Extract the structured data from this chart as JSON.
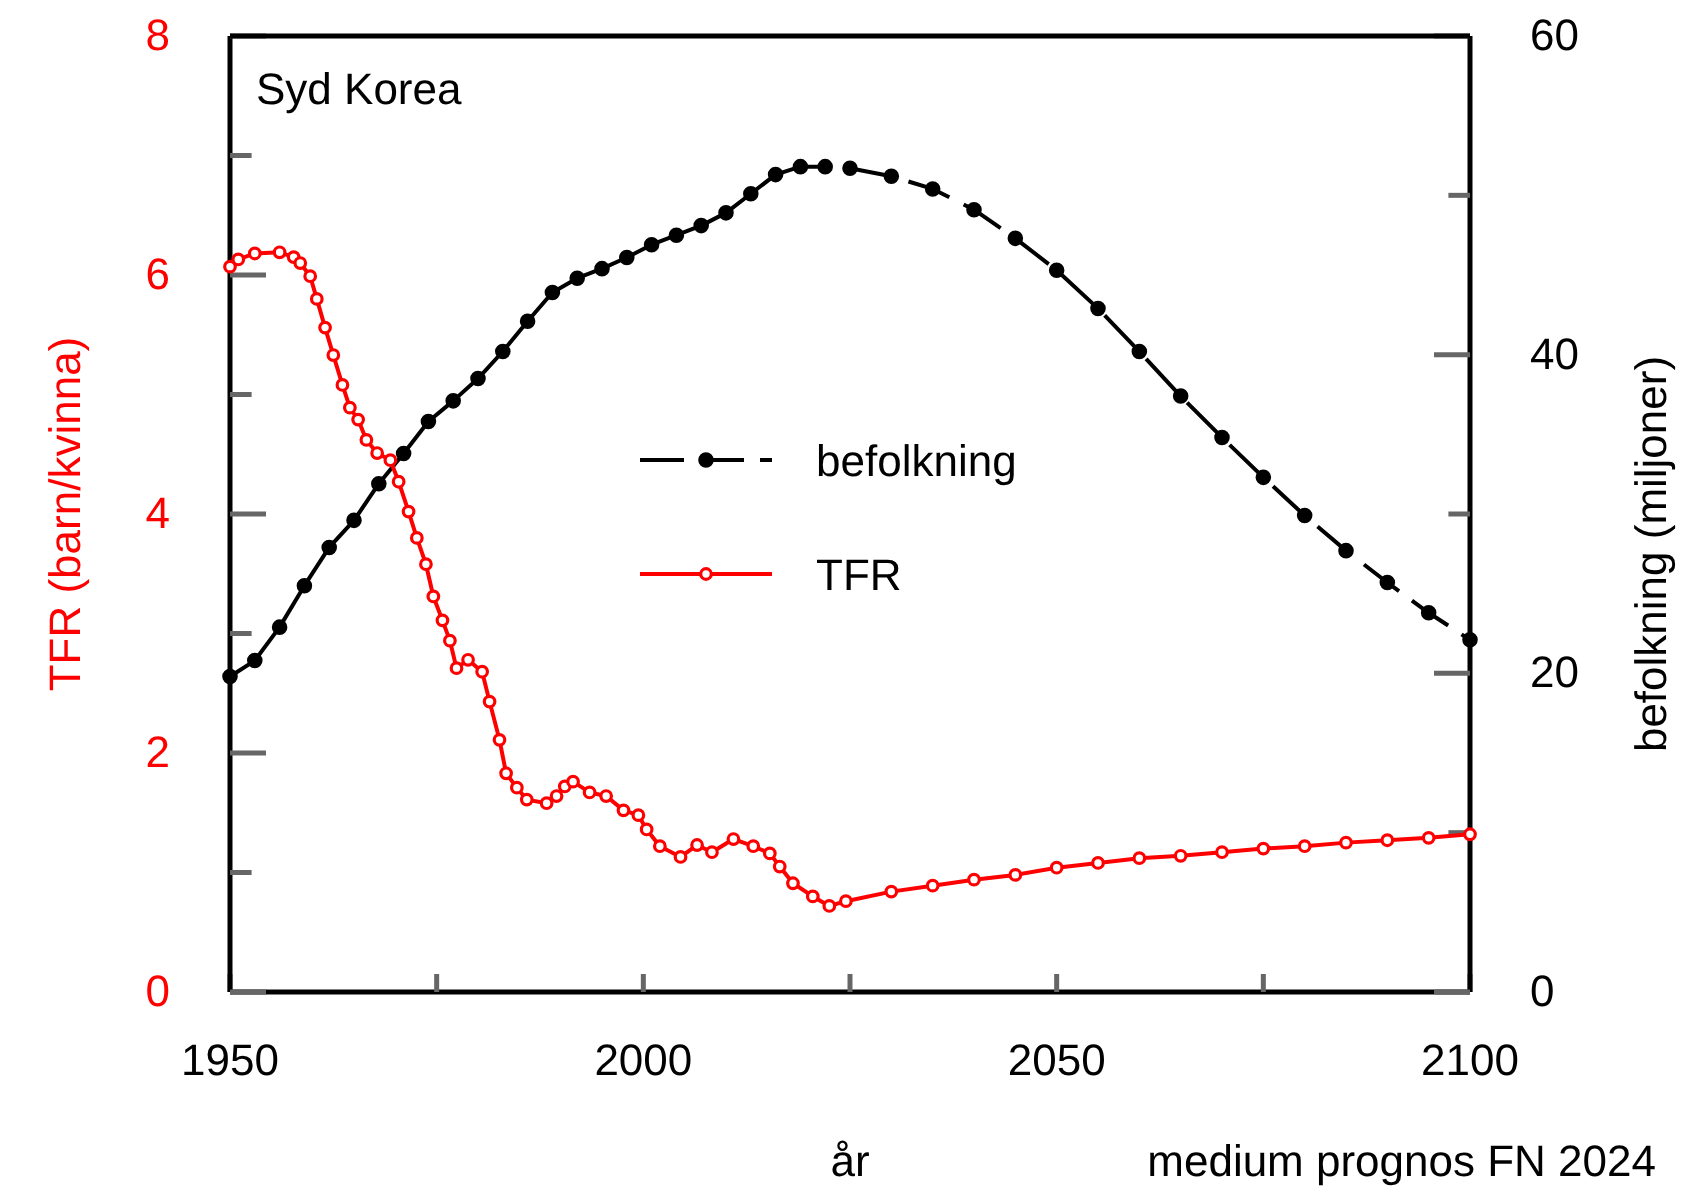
{
  "chart_data": {
    "type": "line",
    "title": "Syd Korea",
    "xlabel": "år",
    "ylabel": "TFR (barn/kvinna)",
    "y2label": "befolkning (miljoner)",
    "annotations": [
      "medium  prognos FN 2024"
    ],
    "xlim": [
      1950,
      2100
    ],
    "xticks": [
      1950,
      {
        "value": 1975,
        "label": null
      },
      2000,
      {
        "value": 2025,
        "label": null
      },
      2050,
      {
        "value": 2075,
        "label": null
      },
      2100
    ],
    "ylim": [
      0,
      8
    ],
    "yticks": [
      0,
      {
        "value": 1,
        "label": null
      },
      2,
      {
        "value": 3,
        "label": null
      },
      4,
      {
        "value": 5,
        "label": null
      },
      6,
      {
        "value": 7,
        "label": null
      },
      8
    ],
    "y2lim": [
      0,
      60
    ],
    "y2ticks": [
      0,
      {
        "value": 10,
        "label": null
      },
      20,
      {
        "value": 30,
        "label": null
      },
      40,
      {
        "value": 50,
        "label": null
      },
      60
    ],
    "legend": "center",
    "grid": false,
    "series": [
      {
        "color": "#000000",
        "axis": "y2",
        "marker": "circle",
        "line_style": "solid",
        "x": [
          1950,
          1953,
          1956,
          1959,
          1962,
          1965,
          1968,
          1971,
          1974,
          1977,
          1980,
          1983,
          1986,
          1989,
          1992,
          1995,
          1998,
          2001,
          2004,
          2007,
          2010,
          2013,
          2016,
          2019,
          2022
        ],
        "values": [
          19.8,
          20.8,
          22.9,
          25.5,
          27.9,
          29.6,
          31.9,
          33.8,
          35.8,
          37.1,
          38.5,
          40.2,
          42.1,
          43.9,
          44.8,
          45.4,
          46.1,
          46.9,
          47.5,
          48.1,
          48.9,
          50.1,
          51.3,
          51.8,
          51.8
        ]
      },
      {
        "name": "befolkning",
        "color": "#000000",
        "axis": "y2",
        "marker": "circle",
        "line_style": "dashed",
        "x": [
          2025,
          2030,
          2035,
          2040,
          2045,
          2050,
          2055,
          2060,
          2065,
          2070,
          2075,
          2080,
          2085,
          2090,
          2095,
          2100
        ],
        "values": [
          51.7,
          51.2,
          50.4,
          49.1,
          47.3,
          45.3,
          42.9,
          40.2,
          37.4,
          34.8,
          32.3,
          29.9,
          27.7,
          25.7,
          23.8,
          22.1
        ]
      },
      {
        "name": "TFR",
        "color": "#ff0000",
        "axis": "y",
        "marker": "circle",
        "line_style": "solid",
        "x": [
          1950,
          1951,
          1953,
          1956,
          1957.7,
          1958.5,
          1959.7,
          1960.5,
          1961.5,
          1962.5,
          1963.6,
          1964.5,
          1965.5,
          1966.5,
          1967.8,
          1969.4,
          1970.4,
          1971.6,
          1972.6,
          1973.7,
          1974.6,
          1975.7,
          1976.6,
          1977.4,
          1978.8,
          1980.5,
          1981.4,
          1982.6,
          1983.4,
          1984.7,
          1985.9,
          1988.3,
          1989.5,
          1990.5,
          1991.5,
          1993.5,
          1995.5,
          1997.6,
          1999.4,
          2000.4,
          2002,
          2004.5,
          2006.5,
          2008.3,
          2010.9,
          2013.3,
          2015.3,
          2016.5,
          2018.1,
          2020.5,
          2022.5,
          2024.5,
          2030,
          2035,
          2040,
          2045,
          2050,
          2055,
          2060,
          2065,
          2070,
          2075,
          2080,
          2085,
          2090,
          2095,
          2100
        ],
        "values": [
          6.07,
          6.13,
          6.18,
          6.19,
          6.15,
          6.1,
          5.99,
          5.8,
          5.56,
          5.33,
          5.08,
          4.89,
          4.79,
          4.62,
          4.51,
          4.45,
          4.27,
          4.02,
          3.8,
          3.58,
          3.31,
          3.11,
          2.94,
          2.71,
          2.78,
          2.68,
          2.43,
          2.11,
          1.83,
          1.71,
          1.61,
          1.58,
          1.64,
          1.72,
          1.76,
          1.67,
          1.64,
          1.52,
          1.48,
          1.36,
          1.22,
          1.13,
          1.23,
          1.17,
          1.28,
          1.22,
          1.16,
          1.05,
          0.91,
          0.8,
          0.72,
          0.76,
          0.84,
          0.89,
          0.94,
          0.98,
          1.04,
          1.08,
          1.12,
          1.14,
          1.17,
          1.2,
          1.22,
          1.25,
          1.27,
          1.29,
          1.32
        ]
      }
    ]
  }
}
